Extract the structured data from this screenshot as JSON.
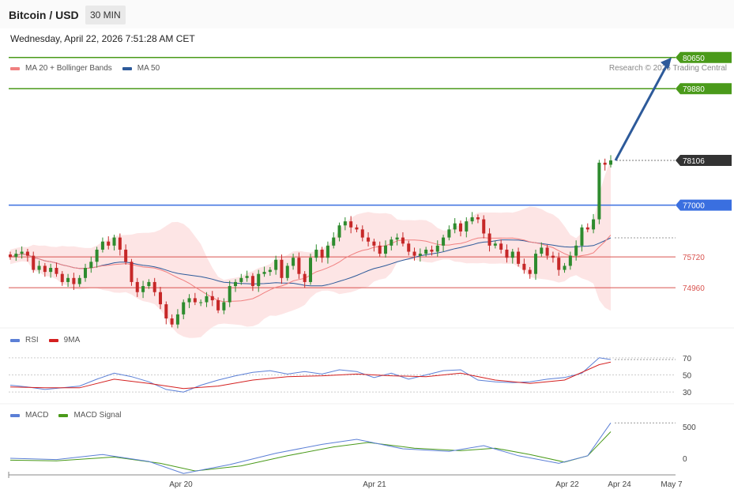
{
  "header": {
    "title": "Bitcoin / USD",
    "timeframe": "30 MIN",
    "datetime": "Wednesday, April 22, 2026 7:51:28 AM CET"
  },
  "legend_main": [
    {
      "label": "MA 20 + Bollinger Bands",
      "color": "#f08080"
    },
    {
      "label": "MA 50",
      "color": "#2d5a9a"
    }
  ],
  "legend_rsi": [
    {
      "label": "RSI",
      "color": "#5b7fd6"
    },
    {
      "label": "9MA",
      "color": "#d42020"
    }
  ],
  "legend_macd": [
    {
      "label": "MACD",
      "color": "#5b7fd6"
    },
    {
      "label": "MACD Signal",
      "color": "#4a9a1a"
    }
  ],
  "credit": "Research © 2026 Trading Central",
  "colors": {
    "resistance": "#4a9a1a",
    "pivot": "#3a6fe0",
    "support": "#d9534f",
    "current": "#333333",
    "candle_up": "#2e8b2e",
    "candle_down": "#c62828",
    "arrow": "#2d5a9a"
  },
  "chart_data": {
    "type": "candlestick",
    "instrument": "Bitcoin / USD",
    "interval": "30 MIN",
    "price_axis": {
      "ymin": 74200,
      "ymax": 80900
    },
    "levels": [
      {
        "price": 80650,
        "label": "80650",
        "kind": "resistance"
      },
      {
        "price": 79880,
        "label": "79880",
        "kind": "resistance"
      },
      {
        "price": 78106,
        "label": "78106",
        "kind": "current"
      },
      {
        "price": 77000,
        "label": "77000",
        "kind": "pivot"
      },
      {
        "price": 75720,
        "label": "75720",
        "kind": "support"
      },
      {
        "price": 74960,
        "label": "74960",
        "kind": "support"
      }
    ],
    "target_arrow": {
      "from_price": 78106,
      "to_price": 80650
    },
    "x_axis": {
      "ticks": [
        "Apr 20",
        "Apr 21",
        "Apr 22",
        "Apr 24",
        "May 7"
      ]
    },
    "closes": [
      75720,
      75800,
      75850,
      75750,
      75400,
      75500,
      75350,
      75450,
      75300,
      75100,
      75200,
      75050,
      75200,
      75450,
      75600,
      75900,
      76100,
      76000,
      76200,
      75900,
      75600,
      75100,
      74850,
      75000,
      75100,
      74850,
      74550,
      74200,
      74050,
      74300,
      74600,
      74700,
      74600,
      74600,
      74750,
      74650,
      74400,
      74600,
      75000,
      75100,
      75200,
      75250,
      75000,
      75300,
      75350,
      75400,
      75650,
      75200,
      75500,
      75700,
      75300,
      75100,
      75700,
      75900,
      75700,
      76000,
      76200,
      76500,
      76600,
      76450,
      76400,
      76200,
      76100,
      76000,
      75800,
      76000,
      76150,
      76200,
      76050,
      75850,
      75750,
      75800,
      75900,
      75850,
      76000,
      76200,
      76400,
      76550,
      76350,
      76600,
      76700,
      76650,
      76300,
      76000,
      76050,
      75900,
      75700,
      75850,
      75550,
      75400,
      75300,
      75800,
      75950,
      75750,
      75700,
      75400,
      75500,
      75750,
      76000,
      76450,
      76400,
      76650,
      78050,
      78000,
      78106
    ],
    "macd_axis": {
      "ymin": -250,
      "ymax": 650
    },
    "rsi_axis": {
      "ymin": 20,
      "ymax": 80
    },
    "rsi_levels": {
      "labels": [
        "70",
        "50",
        "30"
      ],
      "values": [
        70,
        50,
        30
      ]
    },
    "macd_levels": {
      "labels": [
        "500",
        "0"
      ],
      "values": [
        500,
        0
      ]
    },
    "rsi": [
      [
        0,
        38
      ],
      [
        3,
        36
      ],
      [
        6,
        33
      ],
      [
        9,
        35
      ],
      [
        12,
        37
      ],
      [
        15,
        45
      ],
      [
        18,
        52
      ],
      [
        21,
        48
      ],
      [
        24,
        42
      ],
      [
        27,
        33
      ],
      [
        30,
        30
      ],
      [
        33,
        38
      ],
      [
        36,
        44
      ],
      [
        39,
        49
      ],
      [
        42,
        53
      ],
      [
        45,
        55
      ],
      [
        48,
        51
      ],
      [
        51,
        54
      ],
      [
        54,
        51
      ],
      [
        57,
        56
      ],
      [
        60,
        54
      ],
      [
        63,
        47
      ],
      [
        66,
        52
      ],
      [
        69,
        45
      ],
      [
        72,
        50
      ],
      [
        75,
        55
      ],
      [
        78,
        56
      ],
      [
        81,
        44
      ],
      [
        84,
        42
      ],
      [
        87,
        41
      ],
      [
        90,
        42
      ],
      [
        93,
        45
      ],
      [
        96,
        47
      ],
      [
        99,
        52
      ],
      [
        102,
        70
      ],
      [
        104,
        68
      ]
    ],
    "rsi_ma": [
      [
        0,
        36
      ],
      [
        6,
        35
      ],
      [
        12,
        35
      ],
      [
        18,
        45
      ],
      [
        24,
        40
      ],
      [
        30,
        34
      ],
      [
        36,
        37
      ],
      [
        42,
        44
      ],
      [
        48,
        48
      ],
      [
        54,
        49
      ],
      [
        60,
        51
      ],
      [
        66,
        49
      ],
      [
        72,
        48
      ],
      [
        78,
        52
      ],
      [
        84,
        44
      ],
      [
        90,
        40
      ],
      [
        96,
        44
      ],
      [
        102,
        62
      ],
      [
        104,
        65
      ]
    ],
    "macd": [
      [
        0,
        0
      ],
      [
        8,
        -20
      ],
      [
        16,
        60
      ],
      [
        24,
        -50
      ],
      [
        30,
        -240
      ],
      [
        38,
        -100
      ],
      [
        46,
        80
      ],
      [
        54,
        220
      ],
      [
        60,
        300
      ],
      [
        68,
        150
      ],
      [
        76,
        110
      ],
      [
        82,
        200
      ],
      [
        88,
        40
      ],
      [
        95,
        -80
      ],
      [
        100,
        40
      ],
      [
        104,
        560
      ]
    ],
    "macd_signal": [
      [
        0,
        -30
      ],
      [
        8,
        -40
      ],
      [
        18,
        20
      ],
      [
        26,
        -80
      ],
      [
        32,
        -200
      ],
      [
        40,
        -120
      ],
      [
        48,
        40
      ],
      [
        56,
        180
      ],
      [
        62,
        250
      ],
      [
        70,
        160
      ],
      [
        78,
        120
      ],
      [
        84,
        160
      ],
      [
        90,
        60
      ],
      [
        96,
        -60
      ],
      [
        100,
        40
      ],
      [
        104,
        420
      ]
    ]
  }
}
